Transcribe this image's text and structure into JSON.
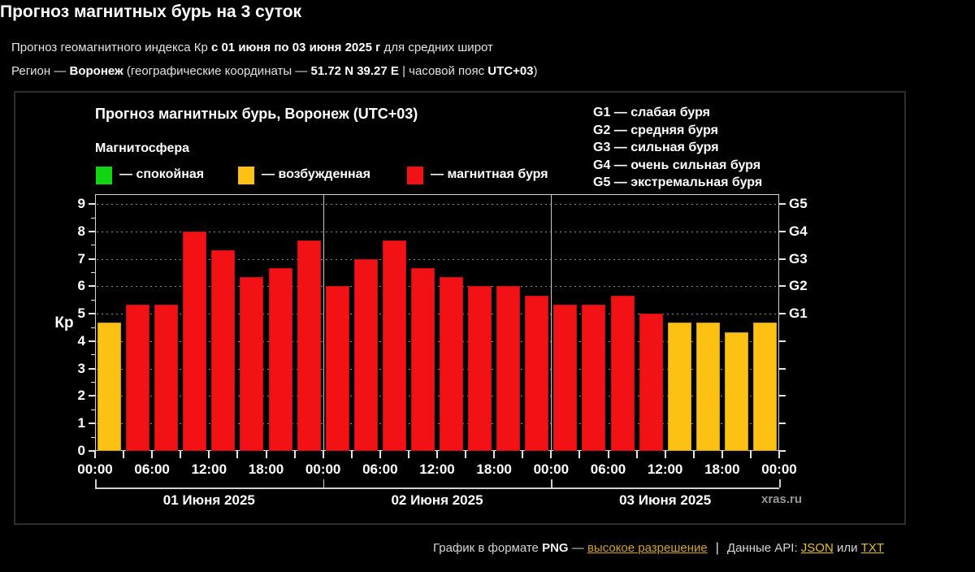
{
  "header": {
    "title": "Прогноз магнитных бурь на 3 суток",
    "line1": {
      "t1": "Прогноз геомагнитного индекса Кр ",
      "b1": "с 01 июня по 03 июня 2025 г",
      "t2": " для средних широт"
    },
    "line2": {
      "t1": "Регион — ",
      "b1": "Воронеж",
      "t2": " (географические координаты — ",
      "b2": "51.72 N 39.27 E",
      "t3": " | часовой пояс ",
      "b3": "UTC+03",
      "t4": ")"
    }
  },
  "panel": {
    "chart_title": "Прогноз магнитных бурь, Воронеж (UTC+03)",
    "magnetosphere_label": "Магнитосфера",
    "legend": [
      {
        "name": "quiet",
        "color": "#12d512",
        "label": "— спокойная"
      },
      {
        "name": "unsettled",
        "color": "#fdc113",
        "label": "— возбужденная"
      },
      {
        "name": "storm",
        "color": "#f21115",
        "label": "— магнитная буря"
      }
    ],
    "g_legend": [
      "G1 — слабая буря",
      "G2 — средняя буря",
      "G3 — сильная буря",
      "G4 — очень сильная буря",
      "G5 — экстремальная буря"
    ],
    "watermark": "xras.ru"
  },
  "chart_data": {
    "type": "bar",
    "title": "Прогноз магнитных бурь, Воронеж (UTC+03)",
    "ylabel": "Кр",
    "ylim": [
      0,
      9.36
    ],
    "ytick_labels": [
      "0",
      "1",
      "2",
      "3",
      "4",
      "5",
      "6",
      "7",
      "8",
      "9"
    ],
    "right_axis": [
      {
        "kp": 5,
        "label": "G1"
      },
      {
        "kp": 6,
        "label": "G2"
      },
      {
        "kp": 7,
        "label": "G3"
      },
      {
        "kp": 8,
        "label": "G4"
      },
      {
        "kp": 9,
        "label": "G5"
      }
    ],
    "hours_per_bar": 3,
    "x_time_labels": [
      "00:00",
      "06:00",
      "12:00",
      "18:00",
      "00:00",
      "06:00",
      "12:00",
      "18:00",
      "00:00",
      "06:00",
      "12:00",
      "18:00",
      "00:00"
    ],
    "days": [
      {
        "label": "01 Июня 2025",
        "values": [
          4.67,
          5.33,
          5.33,
          8.0,
          7.33,
          6.33,
          6.67,
          7.67
        ]
      },
      {
        "label": "02 Июня 2025",
        "values": [
          6.0,
          7.0,
          7.67,
          6.67,
          6.33,
          6.0,
          6.0,
          5.67
        ]
      },
      {
        "label": "03 Июня 2025",
        "values": [
          5.33,
          5.33,
          5.67,
          5.0,
          4.67,
          4.67,
          4.33,
          4.67
        ]
      }
    ],
    "bar_colors": {
      "storm_threshold": 5,
      "storm": "#f21115",
      "unsettled": "#fdc113",
      "quiet": "#12d512"
    },
    "grid": "horizontal-dotted",
    "legend_position": "top-left"
  },
  "footer": {
    "t1": "График в формате ",
    "b1": "PNG",
    "t2": " — ",
    "link_hires": "высокое разрешение",
    "sep": "|",
    "t3": "Данные API: ",
    "link_json": "JSON",
    "t4": " или ",
    "link_txt": "TXT"
  }
}
